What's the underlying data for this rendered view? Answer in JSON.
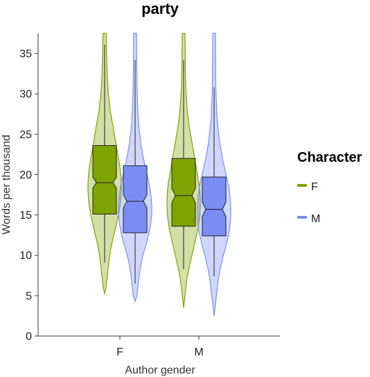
{
  "chart_data": {
    "type": "violin",
    "title": "party",
    "xlabel": "Author gender",
    "ylabel": "Words per thousand",
    "categories": [
      "F",
      "M"
    ],
    "ylim": [
      0,
      37.5
    ],
    "yticks": [
      0,
      5,
      10,
      15,
      20,
      25,
      30,
      35
    ],
    "grid": false,
    "legend": {
      "title": "Character",
      "position": "right",
      "entries": [
        "F",
        "M"
      ]
    },
    "colors": {
      "F": "#7fa300",
      "M": "#7b8cf5"
    },
    "series": [
      {
        "name": "F",
        "groups": [
          {
            "category": "F",
            "q1": 15.1,
            "median": 19.0,
            "q3": 23.6,
            "notch": [
              18.3,
              19.7
            ],
            "whisker_low": 9.1,
            "whisker_high": 36.1,
            "min": 5.2,
            "max": 37.5,
            "density": [
              [
                5.2,
                0
              ],
              [
                6,
                1.5
              ],
              [
                7,
                2.5
              ],
              [
                8,
                3.5
              ],
              [
                9,
                4.5
              ],
              [
                10,
                5.5
              ],
              [
                11,
                7
              ],
              [
                12,
                9
              ],
              [
                13,
                11
              ],
              [
                14,
                13
              ],
              [
                15,
                15
              ],
              [
                16,
                16.5
              ],
              [
                17,
                17.5
              ],
              [
                18,
                18
              ],
              [
                19,
                18
              ],
              [
                20,
                17.5
              ],
              [
                21,
                16.5
              ],
              [
                22,
                15
              ],
              [
                23,
                13.5
              ],
              [
                24,
                12
              ],
              [
                25,
                10.5
              ],
              [
                26,
                9
              ],
              [
                27,
                7.5
              ],
              [
                28,
                6
              ],
              [
                29,
                5
              ],
              [
                30,
                4
              ],
              [
                31,
                3.5
              ],
              [
                32,
                3
              ],
              [
                33,
                2.7
              ],
              [
                34,
                2.4
              ],
              [
                35,
                2.2
              ],
              [
                36,
                2
              ],
              [
                37.5,
                1.8
              ]
            ]
          },
          {
            "category": "M",
            "q1": 13.6,
            "median": 17.4,
            "q3": 22.0,
            "notch": [
              16.5,
              18.3
            ],
            "whisker_low": 8.3,
            "whisker_high": 34.2,
            "min": 3.5,
            "max": 37.5,
            "density": [
              [
                3.5,
                0
              ],
              [
                5,
                1.5
              ],
              [
                6,
                2.5
              ],
              [
                7,
                3.5
              ],
              [
                8,
                5
              ],
              [
                9,
                7
              ],
              [
                10,
                9
              ],
              [
                11,
                11
              ],
              [
                12,
                13
              ],
              [
                13,
                15
              ],
              [
                14,
                16.5
              ],
              [
                15,
                17.5
              ],
              [
                16,
                18
              ],
              [
                17,
                18
              ],
              [
                18,
                17.5
              ],
              [
                19,
                16.5
              ],
              [
                20,
                15
              ],
              [
                21,
                13.5
              ],
              [
                22,
                12
              ],
              [
                23,
                10.5
              ],
              [
                24,
                9
              ],
              [
                25,
                7.5
              ],
              [
                26,
                6
              ],
              [
                27,
                5
              ],
              [
                28,
                4
              ],
              [
                29,
                3.3
              ],
              [
                30,
                2.8
              ],
              [
                31,
                2.4
              ],
              [
                32,
                2.1
              ],
              [
                33,
                1.9
              ],
              [
                34,
                1.8
              ],
              [
                35,
                1.7
              ],
              [
                37.5,
                1.5
              ]
            ]
          }
        ]
      },
      {
        "name": "M",
        "groups": [
          {
            "category": "F",
            "q1": 12.8,
            "median": 16.7,
            "q3": 21.1,
            "notch": [
              15.9,
              17.5
            ],
            "whisker_low": 6.5,
            "whisker_high": 34.2,
            "min": 4.3,
            "max": 37.5,
            "density": [
              [
                4.3,
                0
              ],
              [
                5,
                2
              ],
              [
                6,
                3
              ],
              [
                7,
                4
              ],
              [
                8,
                5
              ],
              [
                9,
                6.5
              ],
              [
                10,
                8.5
              ],
              [
                11,
                11
              ],
              [
                12,
                13.5
              ],
              [
                13,
                15.5
              ],
              [
                14,
                17
              ],
              [
                15,
                18
              ],
              [
                16,
                18
              ],
              [
                17,
                17.5
              ],
              [
                18,
                16.5
              ],
              [
                19,
                15
              ],
              [
                20,
                13
              ],
              [
                21,
                11
              ],
              [
                22,
                9
              ],
              [
                23,
                7.5
              ],
              [
                24,
                6
              ],
              [
                25,
                5
              ],
              [
                26,
                4
              ],
              [
                27,
                3.5
              ],
              [
                28,
                3
              ],
              [
                29,
                2.6
              ],
              [
                30,
                2.3
              ],
              [
                31,
                2.1
              ],
              [
                32,
                2
              ],
              [
                33,
                1.9
              ],
              [
                34,
                1.8
              ],
              [
                35,
                1.7
              ],
              [
                37.5,
                1.6
              ]
            ]
          },
          {
            "category": "M",
            "q1": 12.4,
            "median": 15.7,
            "q3": 19.7,
            "notch": [
              14.8,
              16.6
            ],
            "whisker_low": 7.4,
            "whisker_high": 30.8,
            "min": 2.5,
            "max": 37.5,
            "density": [
              [
                2.5,
                0
              ],
              [
                4,
                1.5
              ],
              [
                5,
                2.5
              ],
              [
                6,
                3.5
              ],
              [
                7,
                4.5
              ],
              [
                8,
                6
              ],
              [
                9,
                8
              ],
              [
                10,
                10
              ],
              [
                11,
                12.5
              ],
              [
                12,
                14.5
              ],
              [
                13,
                16.5
              ],
              [
                14,
                17.5
              ],
              [
                15,
                18
              ],
              [
                16,
                18
              ],
              [
                17,
                17.5
              ],
              [
                18,
                16.5
              ],
              [
                19,
                15
              ],
              [
                20,
                13
              ],
              [
                21,
                11
              ],
              [
                22,
                9
              ],
              [
                23,
                7.5
              ],
              [
                24,
                6
              ],
              [
                25,
                5
              ],
              [
                26,
                4
              ],
              [
                27,
                3.3
              ],
              [
                28,
                2.8
              ],
              [
                29,
                2.4
              ],
              [
                30,
                2.1
              ],
              [
                31,
                1.9
              ],
              [
                32,
                1.8
              ],
              [
                33,
                1.7
              ],
              [
                34,
                1.6
              ],
              [
                35,
                1.5
              ],
              [
                37.5,
                1.4
              ]
            ]
          }
        ]
      }
    ]
  }
}
